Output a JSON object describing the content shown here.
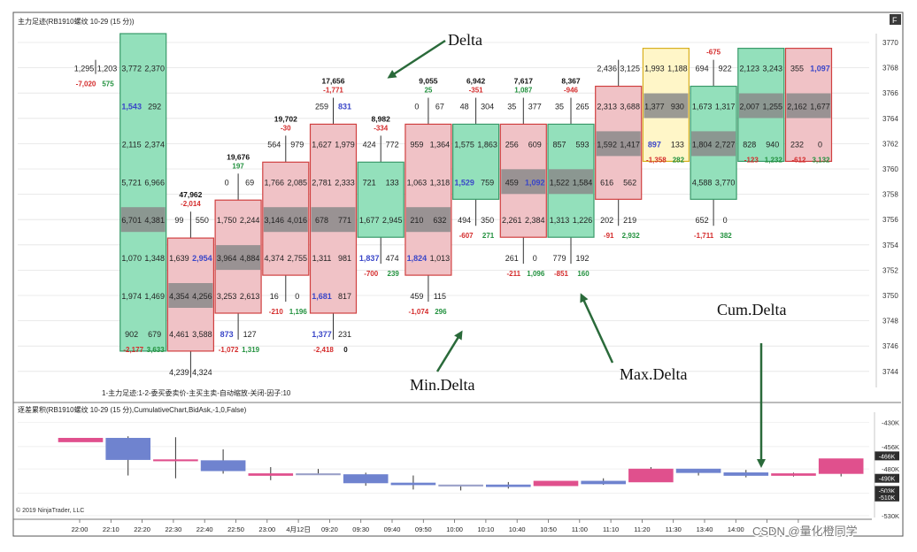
{
  "title": "主力足迹(RB1910螺纹 10-29 (15 分))",
  "title_right": "F",
  "indicator_line": "1-主力足迹:1-2-委买委卖价-主买主卖-自动缩放-关闭-因子:10",
  "lower_title": "逐差累积(RB1910螺纹 10-29 (15 分),CumulativeChart,BidAsk,-1,0,False)",
  "copyright": "© 2019 NinjaTrader, LLC",
  "watermark": "CSDN @量化橙同学",
  "annotations": {
    "delta": "Delta",
    "min_delta": "Min.Delta",
    "max_delta": "Max.Delta",
    "cum_delta": "Cum.Delta"
  },
  "colors": {
    "buy_fill": "#93e0bb",
    "sell_fill": "#f0c2c6",
    "dark_fill": "#8a8a8a",
    "blue_body": "#6f83cf",
    "pink_body": "#e0508d",
    "arrow": "#2a6a3a",
    "neg": "#d42b2b",
    "pos": "#22913e",
    "blue_text": "#3a46c8",
    "purple_text": "#7a35b0"
  },
  "chart_data": [
    {
      "type": "footprint",
      "title": "主力足迹(RB1910螺纹 10-29 (15 分))",
      "ylabel": "Price",
      "ylim": [
        3742,
        3771
      ],
      "price_ticks": [
        3770,
        3768,
        3766,
        3764,
        3762,
        3760,
        3758,
        3756,
        3754,
        3752,
        3750,
        3748,
        3746,
        3744
      ],
      "bars": [
        {
          "x": 1,
          "color": "",
          "top_label": "",
          "delta": "",
          "rows": [
            {
              "p": 3768,
              "b": "1,295",
              "a": "1,203"
            }
          ],
          "min_delta": "-7,020",
          "max_delta": "575"
        },
        {
          "x": 2,
          "color": "buy",
          "top_label": "",
          "delta": "",
          "rows": [
            {
              "p": 3768,
              "b": "3,772",
              "a": "2,370"
            },
            {
              "p": 3765,
              "b": "1,543",
              "a": "292"
            },
            {
              "p": 3762,
              "b": "2,115",
              "a": "2,374"
            },
            {
              "p": 3759,
              "b": "5,721",
              "a": "6,966"
            },
            {
              "p": 3756,
              "b": "6,701",
              "a": "4,381"
            },
            {
              "p": 3753,
              "b": "1,070",
              "a": "1,348"
            },
            {
              "p": 3750,
              "b": "1,974",
              "a": "1,469"
            },
            {
              "p": 3747,
              "b": "902",
              "a": "679"
            }
          ],
          "min_delta": "-2,177",
          "max_delta": "3,633"
        },
        {
          "x": 3,
          "color": "sell",
          "top_label": "47,962",
          "delta": "-2,014",
          "rows": [
            {
              "p": 3756,
              "b": "99",
              "a": "550"
            },
            {
              "p": 3753,
              "b": "1,639",
              "a": "2,954"
            },
            {
              "p": 3750,
              "b": "4,354",
              "a": "4,256"
            },
            {
              "p": 3747,
              "b": "4,461",
              "a": "3,588"
            },
            {
              "p": 3744,
              "b": "4,239",
              "a": "4,324"
            }
          ],
          "min_delta": "",
          "max_delta": ""
        },
        {
          "x": 4,
          "color": "sell",
          "top_label": "19,676",
          "delta": "197",
          "rows": [
            {
              "p": 3759,
              "b": "0",
              "a": "69"
            },
            {
              "p": 3756,
              "b": "1,750",
              "a": "2,244"
            },
            {
              "p": 3753,
              "b": "3,964",
              "a": "4,884"
            },
            {
              "p": 3750,
              "b": "3,253",
              "a": "2,613"
            },
            {
              "p": 3747,
              "b": "873",
              "a": "127"
            }
          ],
          "min_delta": "-1,072",
          "max_delta": "1,319"
        },
        {
          "x": 5,
          "color": "sell",
          "top_label": "19,702",
          "delta": "-30",
          "rows": [
            {
              "p": 3762,
              "b": "564",
              "a": "979"
            },
            {
              "p": 3759,
              "b": "1,766",
              "a": "2,085"
            },
            {
              "p": 3756,
              "b": "3,146",
              "a": "4,016"
            },
            {
              "p": 3753,
              "b": "4,374",
              "a": "2,755"
            },
            {
              "p": 3750,
              "b": "16",
              "a": "0"
            }
          ],
          "min_delta": "-210",
          "max_delta": "1,196"
        },
        {
          "x": 6,
          "color": "sell",
          "top_label": "17,656",
          "delta": "-1,771",
          "rows": [
            {
              "p": 3765,
              "b": "259",
              "a": "831"
            },
            {
              "p": 3762,
              "b": "1,627",
              "a": "1,979"
            },
            {
              "p": 3759,
              "b": "2,781",
              "a": "2,333"
            },
            {
              "p": 3756,
              "b": "678",
              "a": "771"
            },
            {
              "p": 3753,
              "b": "1,311",
              "a": "981"
            },
            {
              "p": 3750,
              "b": "1,681",
              "a": "817"
            },
            {
              "p": 3747,
              "b": "1,377",
              "a": "231"
            }
          ],
          "min_delta": "-2,418",
          "max_delta": "0"
        },
        {
          "x": 7,
          "color": "buy",
          "top_label": "8,982",
          "delta": "-334",
          "rows": [
            {
              "p": 3762,
              "b": "424",
              "a": "772"
            },
            {
              "p": 3759,
              "b": "721",
              "a": "133"
            },
            {
              "p": 3756,
              "b": "1,677",
              "a": "2,945"
            },
            {
              "p": 3753,
              "b": "1,837",
              "a": "474"
            }
          ],
          "min_delta": "-700",
          "max_delta": "239"
        },
        {
          "x": 8,
          "color": "sell",
          "top_label": "9,055",
          "delta": "25",
          "rows": [
            {
              "p": 3765,
              "b": "0",
              "a": "67"
            },
            {
              "p": 3762,
              "b": "959",
              "a": "1,364"
            },
            {
              "p": 3759,
              "b": "1,063",
              "a": "1,318"
            },
            {
              "p": 3756,
              "b": "210",
              "a": "632"
            },
            {
              "p": 3753,
              "b": "1,824",
              "a": "1,013"
            },
            {
              "p": 3750,
              "b": "459",
              "a": "115"
            }
          ],
          "min_delta": "-1,074",
          "max_delta": "296"
        },
        {
          "x": 9,
          "color": "buy",
          "top_label": "6,942",
          "delta": "-351",
          "rows": [
            {
              "p": 3765,
              "b": "48",
              "a": "304"
            },
            {
              "p": 3762,
              "b": "1,575",
              "a": "1,863"
            },
            {
              "p": 3759,
              "b": "1,529",
              "a": "759"
            },
            {
              "p": 3756,
              "b": "494",
              "a": "350"
            }
          ],
          "min_delta": "-607",
          "max_delta": "271"
        },
        {
          "x": 10,
          "color": "sell",
          "top_label": "7,617",
          "delta": "1,087",
          "rows": [
            {
              "p": 3765,
              "b": "35",
              "a": "377"
            },
            {
              "p": 3762,
              "b": "256",
              "a": "609"
            },
            {
              "p": 3759,
              "b": "459",
              "a": "1,092"
            },
            {
              "p": 3756,
              "b": "2,261",
              "a": "2,384"
            },
            {
              "p": 3753,
              "b": "261",
              "a": "0"
            }
          ],
          "min_delta": "-211",
          "max_delta": "1,096"
        },
        {
          "x": 11,
          "color": "buy",
          "top_label": "8,367",
          "delta": "-946",
          "rows": [
            {
              "p": 3765,
              "b": "35",
              "a": "265"
            },
            {
              "p": 3762,
              "b": "857",
              "a": "593"
            },
            {
              "p": 3759,
              "b": "1,522",
              "a": "1,584"
            },
            {
              "p": 3756,
              "b": "1,313",
              "a": "1,226"
            },
            {
              "p": 3753,
              "b": "779",
              "a": "192"
            }
          ],
          "min_delta": "-851",
          "max_delta": "160"
        },
        {
          "x": 12,
          "color": "sell",
          "top_label": "",
          "delta": "",
          "rows": [
            {
              "p": 3768,
              "b": "2,436",
              "a": "3,125"
            },
            {
              "p": 3765,
              "b": "2,313",
              "a": "3,688"
            },
            {
              "p": 3762,
              "b": "1,592",
              "a": "1,417"
            },
            {
              "p": 3759,
              "b": "616",
              "a": "562"
            },
            {
              "p": 3756,
              "b": "202",
              "a": "219"
            }
          ],
          "min_delta": "-91",
          "max_delta": "2,932"
        },
        {
          "x": 13,
          "color": "doji",
          "top_label": "",
          "delta": "",
          "rows": [
            {
              "p": 3768,
              "b": "1,993",
              "a": "1,188"
            },
            {
              "p": 3765,
              "b": "1,377",
              "a": "930"
            },
            {
              "p": 3762,
              "b": "897",
              "a": "133"
            }
          ],
          "min_delta": "-1,358",
          "max_delta": "282"
        },
        {
          "x": 14,
          "color": "buy",
          "top_label": "",
          "delta": "-675",
          "rows": [
            {
              "p": 3768,
              "b": "694",
              "a": "922"
            },
            {
              "p": 3765,
              "b": "1,673",
              "a": "1,317"
            },
            {
              "p": 3762,
              "b": "1,804",
              "a": "2,727"
            },
            {
              "p": 3759,
              "b": "4,588",
              "a": "3,770"
            },
            {
              "p": 3756,
              "b": "652",
              "a": "0"
            }
          ],
          "min_delta": "-1,711",
          "max_delta": "382"
        },
        {
          "x": 15,
          "color": "buy",
          "top_label": "",
          "delta": "",
          "rows": [
            {
              "p": 3768,
              "b": "2,123",
              "a": "3,243"
            },
            {
              "p": 3765,
              "b": "2,007",
              "a": "1,255"
            },
            {
              "p": 3762,
              "b": "828",
              "a": "940"
            }
          ],
          "min_delta": "-123",
          "max_delta": "1,232"
        },
        {
          "x": 16,
          "color": "sell",
          "top_label": "",
          "delta": "",
          "rows": [
            {
              "p": 3768,
              "b": "355",
              "a": "1,097"
            },
            {
              "p": 3765,
              "b": "2,162",
              "a": "1,677"
            },
            {
              "p": 3762,
              "b": "232",
              "a": "0"
            }
          ],
          "min_delta": "-612",
          "max_delta": "3,132"
        }
      ]
    },
    {
      "type": "candlestick",
      "title": "逐差累积(RB1910螺纹 10-29 (15 分),CumulativeChart,BidAsk,-1,0,False)",
      "ylabel": "Cumulative Delta (K)",
      "ylim": [
        -532,
        -423
      ],
      "y_ticks": [
        "-430K",
        "-456K",
        "-480K",
        "-506K",
        "-530K"
      ],
      "y_tags": [
        "-466K",
        "-490K",
        "-503K",
        "-510K"
      ],
      "x_labels": [
        "22:00",
        "22:10",
        "22:20",
        "22:30",
        "22:40",
        "22:50",
        "23:00",
        "4月12日",
        "09:20",
        "09:30",
        "09:40",
        "09:50",
        "10:00",
        "10:10",
        "10:40",
        "10:50",
        "11:00",
        "11:10",
        "11:20",
        "11:30",
        "13:40",
        "14:00",
        "14:10",
        "14:20"
      ],
      "candles": [
        {
          "x": 1,
          "o": -447,
          "c": -451,
          "h": -447,
          "l": -451,
          "color": "pink"
        },
        {
          "x": 2,
          "o": -447,
          "c": -470,
          "h": -445,
          "l": -487,
          "color": "blue"
        },
        {
          "x": 3,
          "o": -470,
          "c": -471,
          "h": -446,
          "l": -490,
          "color": "pink"
        },
        {
          "x": 4,
          "o": -471,
          "c": -482,
          "h": -459,
          "l": -485,
          "color": "blue"
        },
        {
          "x": 5,
          "o": -485,
          "c": -487,
          "h": -478,
          "l": -492,
          "color": "pink"
        },
        {
          "x": 6,
          "o": -485,
          "c": -486,
          "h": -480,
          "l": -486,
          "color": "doji"
        },
        {
          "x": 7,
          "o": -486,
          "c": -495,
          "h": -484,
          "l": -498,
          "color": "blue"
        },
        {
          "x": 8,
          "o": -495,
          "c": -497,
          "h": -487,
          "l": -502,
          "color": "blue"
        },
        {
          "x": 9,
          "o": -497,
          "c": -497,
          "h": -497,
          "l": -503,
          "color": "doji"
        },
        {
          "x": 10,
          "o": -497,
          "c": -499,
          "h": -494,
          "l": -501,
          "color": "blue"
        },
        {
          "x": 11,
          "o": -498,
          "c": -493,
          "h": -493,
          "l": -498,
          "color": "pink"
        },
        {
          "x": 12,
          "o": -493,
          "c": -496,
          "h": -490,
          "l": -497,
          "color": "blue"
        },
        {
          "x": 13,
          "o": -494,
          "c": -480,
          "h": -478,
          "l": -494,
          "color": "pink"
        },
        {
          "x": 14,
          "o": -480,
          "c": -484,
          "h": -480,
          "l": -487,
          "color": "blue"
        },
        {
          "x": 15,
          "o": -484,
          "c": -487,
          "h": -481,
          "l": -489,
          "color": "blue"
        },
        {
          "x": 16,
          "o": -487,
          "c": -485,
          "h": -484,
          "l": -488,
          "color": "pink"
        },
        {
          "x": 17,
          "o": -485,
          "c": -469,
          "h": -469,
          "l": -488,
          "color": "pink"
        }
      ]
    }
  ]
}
